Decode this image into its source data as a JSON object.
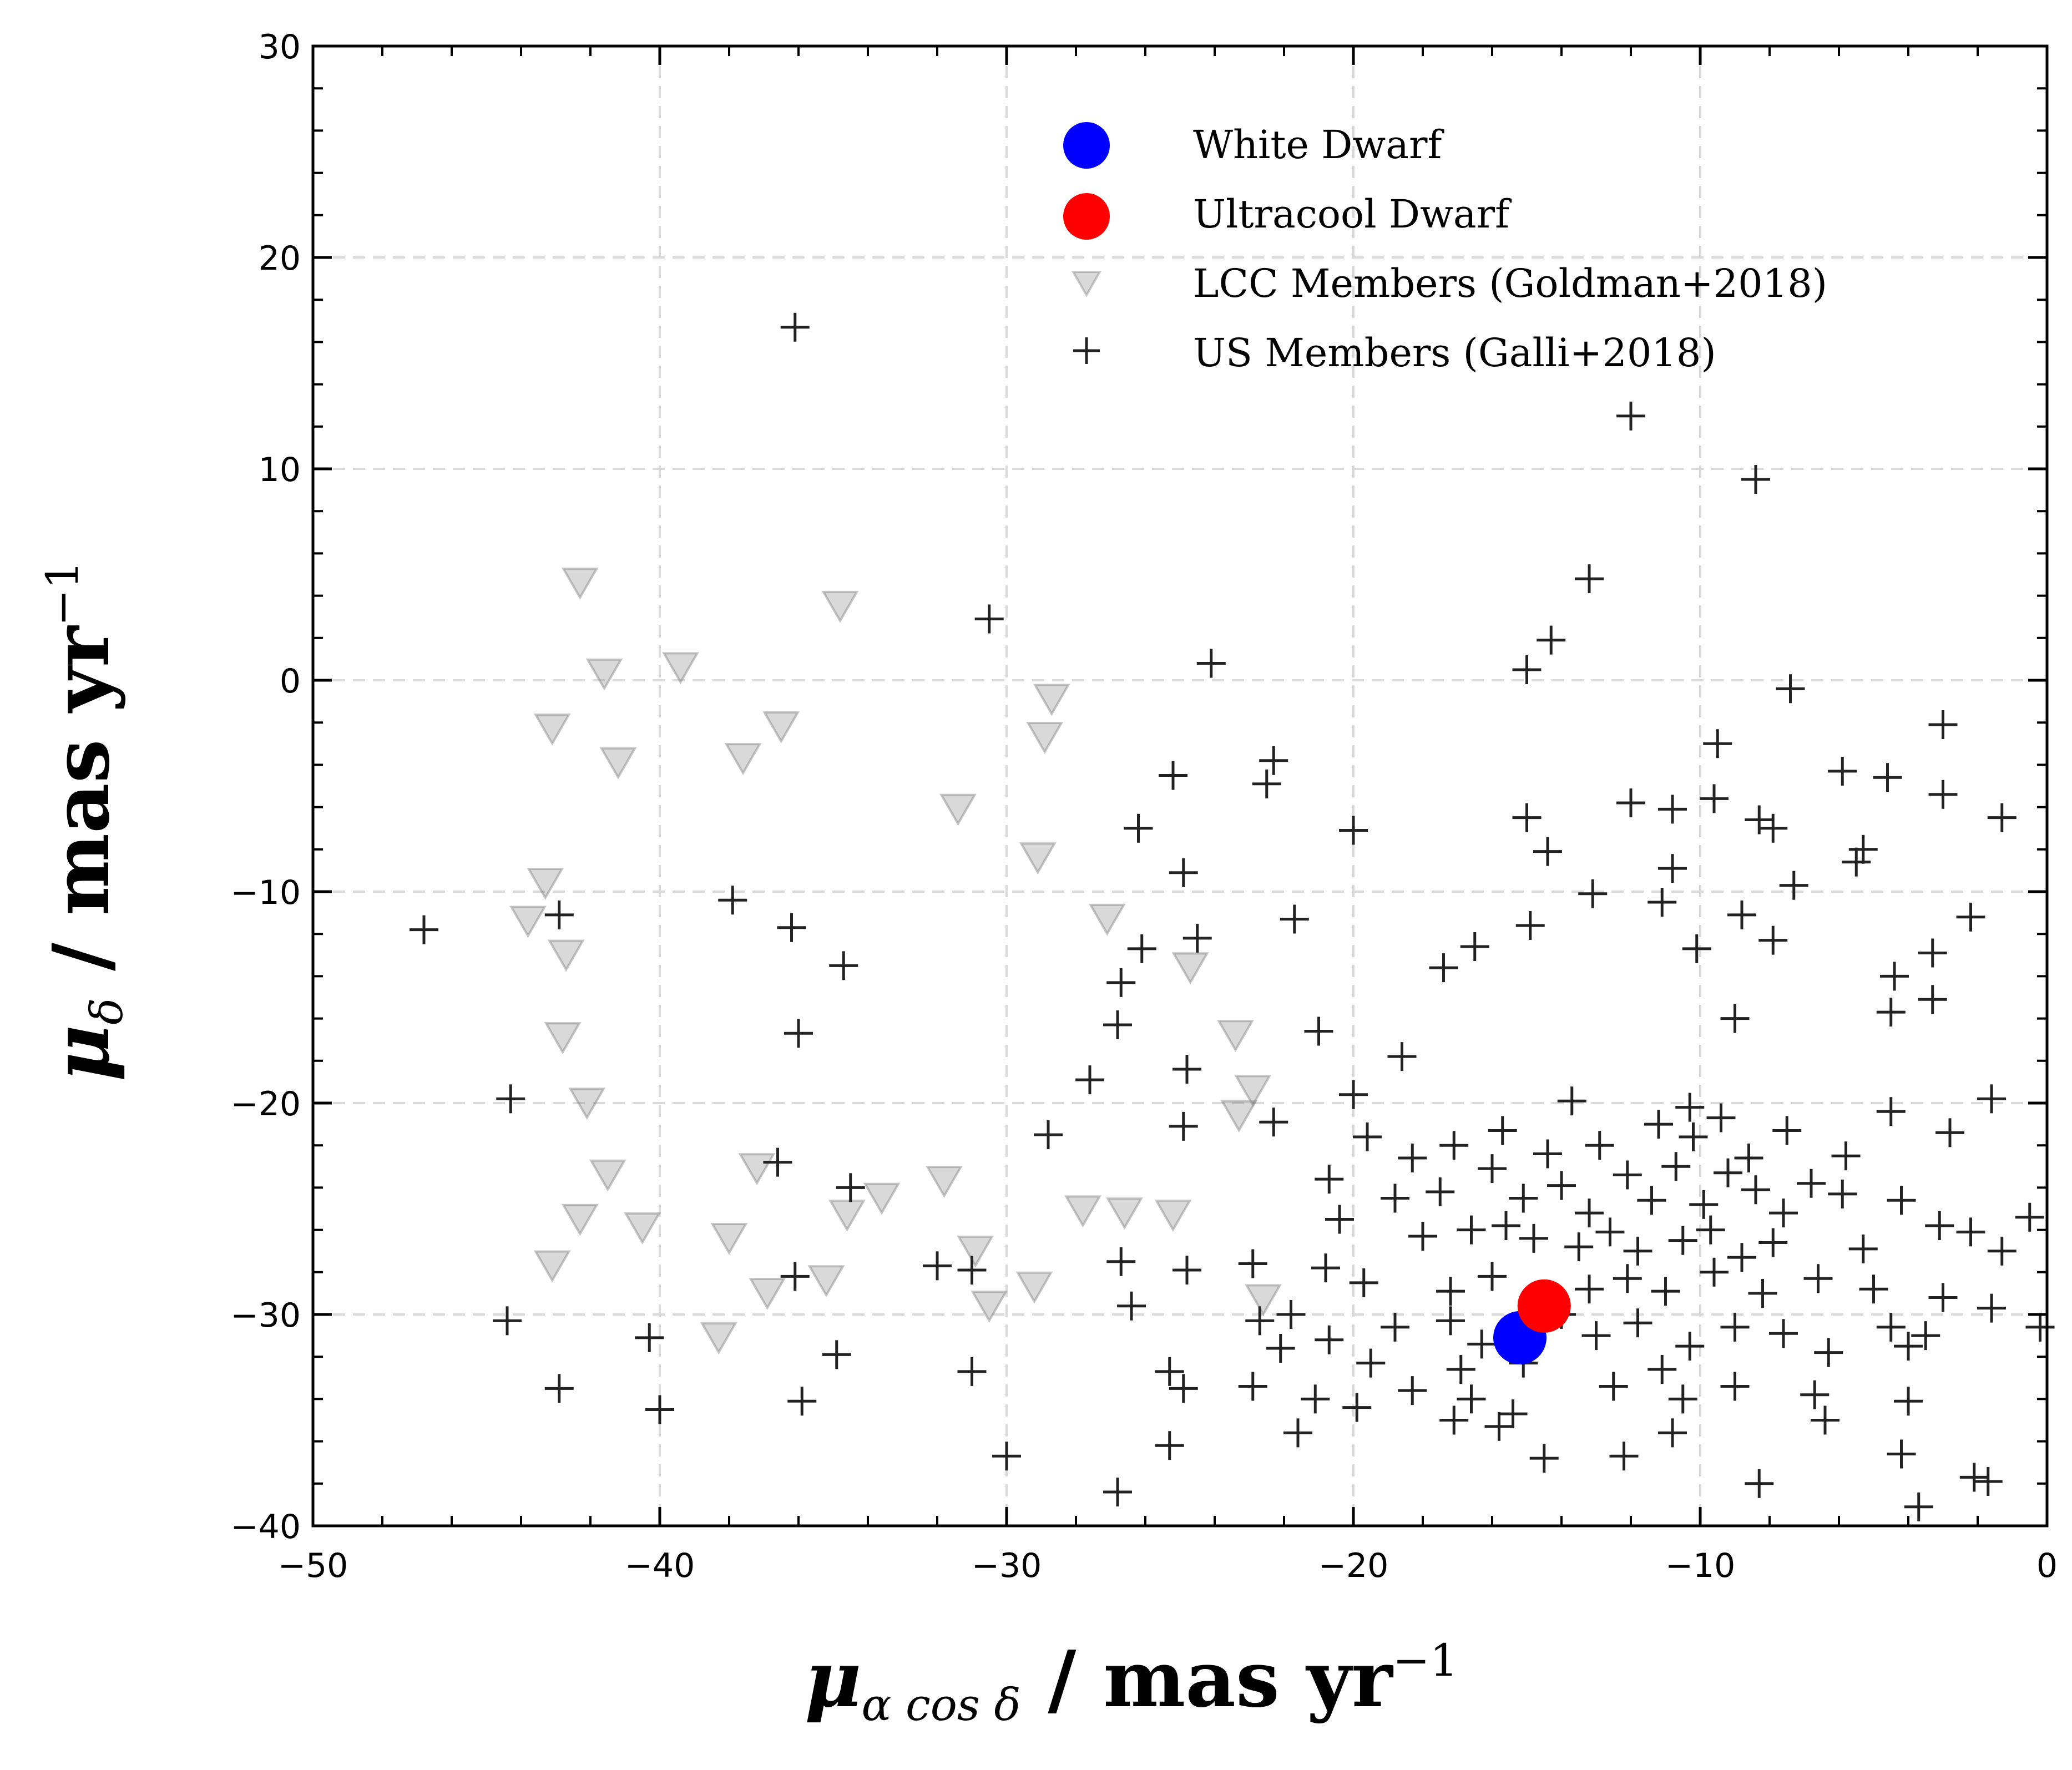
{
  "chart_data": {
    "type": "scatter",
    "title": "",
    "xlabel": {
      "symbol": "μ",
      "subscript": "α cos δ",
      "text": " / mas yr",
      "superscript": "−1"
    },
    "ylabel": {
      "symbol": "μ",
      "subscript": "δ",
      "text": " / mas yr",
      "superscript": "−1"
    },
    "xlim": [
      -50,
      0
    ],
    "ylim": [
      -40,
      30
    ],
    "xticks": [
      -50,
      -40,
      -30,
      -20,
      -10,
      0
    ],
    "xtick_labels": [
      "−50",
      "−40",
      "−30",
      "−20",
      "−10",
      "0"
    ],
    "yticks": [
      -40,
      -30,
      -20,
      -10,
      0,
      10,
      20,
      30
    ],
    "ytick_labels": [
      "−40",
      "−30",
      "−20",
      "−10",
      "0",
      "10",
      "20",
      "30"
    ],
    "grid": true,
    "legend_position": "top-right",
    "legend": [
      {
        "label": "White Dwarf",
        "marker": "circle",
        "color": "#0000ff"
      },
      {
        "label": "Ultracool Dwarf",
        "marker": "circle",
        "color": "#ff0000"
      },
      {
        "label": "LCC Members (Goldman+2018)",
        "marker": "triangle-down",
        "color": "#808080"
      },
      {
        "label": "US Members (Galli+2018)",
        "marker": "plus",
        "color": "#222222"
      }
    ],
    "series": [
      {
        "name": "White Dwarf",
        "marker": "circle",
        "color": "#0000ff",
        "points": [
          [
            -15.2,
            -31.1
          ]
        ]
      },
      {
        "name": "Ultracool Dwarf",
        "marker": "circle",
        "color": "#ff0000",
        "points": [
          [
            -14.5,
            -29.6
          ]
        ]
      },
      {
        "name": "LCC Members (Goldman+2018)",
        "marker": "triangle-down",
        "color": "#808080",
        "points": [
          [
            -42.3,
            4.7
          ],
          [
            -34.8,
            3.6
          ],
          [
            -41.6,
            0.4
          ],
          [
            -39.4,
            0.7
          ],
          [
            -28.7,
            -0.8
          ],
          [
            -43.1,
            -2.2
          ],
          [
            -36.5,
            -2.1
          ],
          [
            -28.9,
            -2.6
          ],
          [
            -41.2,
            -3.8
          ],
          [
            -37.6,
            -3.6
          ],
          [
            -31.4,
            -6.0
          ],
          [
            -29.1,
            -8.3
          ],
          [
            -43.3,
            -9.5
          ],
          [
            -43.8,
            -11.3
          ],
          [
            -42.7,
            -12.9
          ],
          [
            -27.1,
            -11.2
          ],
          [
            -24.7,
            -13.5
          ],
          [
            -23.4,
            -16.7
          ],
          [
            -42.8,
            -16.8
          ],
          [
            -42.1,
            -19.9
          ],
          [
            -22.9,
            -19.3
          ],
          [
            -23.3,
            -20.5
          ],
          [
            -41.5,
            -23.3
          ],
          [
            -42.3,
            -25.4
          ],
          [
            -40.5,
            -25.8
          ],
          [
            -43.1,
            -27.6
          ],
          [
            -38.0,
            -26.3
          ],
          [
            -36.9,
            -28.9
          ],
          [
            -35.2,
            -28.3
          ],
          [
            -38.3,
            -31.0
          ],
          [
            -33.6,
            -24.4
          ],
          [
            -30.5,
            -29.5
          ],
          [
            -29.2,
            -28.6
          ],
          [
            -30.9,
            -26.9
          ],
          [
            -26.6,
            -25.1
          ],
          [
            -25.2,
            -25.2
          ],
          [
            -22.6,
            -29.2
          ],
          [
            -27.8,
            -25.0
          ],
          [
            -31.8,
            -23.6
          ],
          [
            -34.6,
            -25.2
          ],
          [
            -37.2,
            -23.0
          ]
        ]
      },
      {
        "name": "US Members (Galli+2018)",
        "marker": "plus",
        "color": "#222222",
        "points": [
          [
            -36.1,
            16.7
          ],
          [
            -12.0,
            12.5
          ],
          [
            -8.4,
            9.5
          ],
          [
            -13.2,
            4.8
          ],
          [
            -30.5,
            2.9
          ],
          [
            -14.3,
            1.9
          ],
          [
            -15.0,
            0.5
          ],
          [
            -24.1,
            0.8
          ],
          [
            -7.4,
            -0.4
          ],
          [
            -3.0,
            -2.1
          ],
          [
            -9.5,
            -3.0
          ],
          [
            -22.3,
            -3.8
          ],
          [
            -25.2,
            -4.5
          ],
          [
            -22.5,
            -4.9
          ],
          [
            -5.9,
            -4.3
          ],
          [
            -4.6,
            -4.6
          ],
          [
            -3.0,
            -5.4
          ],
          [
            -12.0,
            -5.8
          ],
          [
            -10.8,
            -6.1
          ],
          [
            -9.6,
            -5.6
          ],
          [
            -15.0,
            -6.5
          ],
          [
            -8.3,
            -6.6
          ],
          [
            -1.3,
            -6.5
          ],
          [
            -26.2,
            -7.0
          ],
          [
            -20.0,
            -7.1
          ],
          [
            -14.4,
            -8.1
          ],
          [
            -7.9,
            -7.0
          ],
          [
            -5.3,
            -8.0
          ],
          [
            -5.5,
            -8.6
          ],
          [
            -10.8,
            -8.9
          ],
          [
            -24.9,
            -9.1
          ],
          [
            -7.3,
            -9.7
          ],
          [
            -13.1,
            -10.1
          ],
          [
            -11.1,
            -10.5
          ],
          [
            -46.8,
            -11.8
          ],
          [
            -42.9,
            -11.1
          ],
          [
            -37.9,
            -10.4
          ],
          [
            -36.2,
            -11.7
          ],
          [
            -21.7,
            -11.3
          ],
          [
            -14.9,
            -11.6
          ],
          [
            -8.8,
            -11.1
          ],
          [
            -2.2,
            -11.2
          ],
          [
            -34.7,
            -13.5
          ],
          [
            -26.1,
            -12.7
          ],
          [
            -24.5,
            -12.2
          ],
          [
            -16.5,
            -12.6
          ],
          [
            -10.1,
            -12.7
          ],
          [
            -7.9,
            -12.3
          ],
          [
            -3.3,
            -12.9
          ],
          [
            -26.7,
            -14.3
          ],
          [
            -17.4,
            -13.6
          ],
          [
            -4.4,
            -14.0
          ],
          [
            -3.3,
            -15.1
          ],
          [
            -4.5,
            -15.7
          ],
          [
            -36.0,
            -16.7
          ],
          [
            -26.8,
            -16.3
          ],
          [
            -21.0,
            -16.6
          ],
          [
            -18.6,
            -17.8
          ],
          [
            -9.0,
            -16.0
          ],
          [
            -27.6,
            -18.9
          ],
          [
            -24.8,
            -18.4
          ],
          [
            -44.3,
            -19.8
          ],
          [
            -20.0,
            -19.6
          ],
          [
            -13.7,
            -19.9
          ],
          [
            -10.3,
            -20.2
          ],
          [
            -28.8,
            -21.5
          ],
          [
            -24.9,
            -21.1
          ],
          [
            -22.3,
            -20.9
          ],
          [
            -19.6,
            -21.6
          ],
          [
            -18.3,
            -22.6
          ],
          [
            -17.1,
            -22.0
          ],
          [
            -15.7,
            -21.3
          ],
          [
            -14.4,
            -22.4
          ],
          [
            -12.9,
            -22.0
          ],
          [
            -11.2,
            -21.0
          ],
          [
            -10.2,
            -21.6
          ],
          [
            -9.4,
            -20.7
          ],
          [
            -8.6,
            -22.6
          ],
          [
            -7.5,
            -21.3
          ],
          [
            -5.8,
            -22.5
          ],
          [
            -4.5,
            -20.4
          ],
          [
            -2.8,
            -21.4
          ],
          [
            -1.6,
            -19.8
          ],
          [
            -36.6,
            -22.8
          ],
          [
            -34.5,
            -24.0
          ],
          [
            -20.7,
            -23.6
          ],
          [
            -18.8,
            -24.5
          ],
          [
            -17.5,
            -24.2
          ],
          [
            -16.0,
            -23.1
          ],
          [
            -15.1,
            -24.5
          ],
          [
            -14.0,
            -23.9
          ],
          [
            -13.2,
            -25.2
          ],
          [
            -12.1,
            -23.4
          ],
          [
            -11.4,
            -24.6
          ],
          [
            -10.7,
            -23.0
          ],
          [
            -9.9,
            -24.8
          ],
          [
            -9.2,
            -23.3
          ],
          [
            -8.4,
            -24.1
          ],
          [
            -7.6,
            -25.2
          ],
          [
            -6.8,
            -23.8
          ],
          [
            -5.9,
            -24.3
          ],
          [
            -4.2,
            -24.6
          ],
          [
            -3.1,
            -25.8
          ],
          [
            -0.5,
            -25.4
          ],
          [
            -20.4,
            -25.5
          ],
          [
            -18.0,
            -26.3
          ],
          [
            -16.6,
            -26.0
          ],
          [
            -15.6,
            -25.8
          ],
          [
            -14.8,
            -26.4
          ],
          [
            -13.5,
            -26.8
          ],
          [
            -12.6,
            -26.1
          ],
          [
            -11.8,
            -27.0
          ],
          [
            -10.5,
            -26.5
          ],
          [
            -9.7,
            -26.0
          ],
          [
            -8.8,
            -27.3
          ],
          [
            -7.9,
            -26.6
          ],
          [
            -5.3,
            -26.9
          ],
          [
            -2.2,
            -26.1
          ],
          [
            -1.3,
            -27.0
          ],
          [
            -36.1,
            -28.2
          ],
          [
            -32.0,
            -27.7
          ],
          [
            -31.0,
            -27.9
          ],
          [
            -26.7,
            -27.5
          ],
          [
            -24.8,
            -27.9
          ],
          [
            -22.9,
            -27.6
          ],
          [
            -20.8,
            -27.8
          ],
          [
            -19.7,
            -28.5
          ],
          [
            -17.2,
            -28.9
          ],
          [
            -16.0,
            -28.2
          ],
          [
            -13.2,
            -28.8
          ],
          [
            -12.1,
            -28.3
          ],
          [
            -11.0,
            -28.9
          ],
          [
            -9.6,
            -28.0
          ],
          [
            -8.2,
            -29.0
          ],
          [
            -6.6,
            -28.3
          ],
          [
            -5.0,
            -28.8
          ],
          [
            -3.0,
            -29.2
          ],
          [
            -1.6,
            -29.7
          ],
          [
            -44.4,
            -30.3
          ],
          [
            -26.4,
            -29.6
          ],
          [
            -22.7,
            -30.3
          ],
          [
            -21.8,
            -30.0
          ],
          [
            -20.7,
            -31.2
          ],
          [
            -18.8,
            -30.6
          ],
          [
            -17.2,
            -30.3
          ],
          [
            -16.3,
            -31.4
          ],
          [
            -14.0,
            -30.0
          ],
          [
            -13.0,
            -31.0
          ],
          [
            -11.8,
            -30.4
          ],
          [
            -10.3,
            -31.5
          ],
          [
            -9.0,
            -30.6
          ],
          [
            -7.6,
            -30.9
          ],
          [
            -6.3,
            -31.8
          ],
          [
            -4.5,
            -30.6
          ],
          [
            -3.5,
            -31.0
          ],
          [
            -0.2,
            -30.6
          ],
          [
            -40.3,
            -31.1
          ],
          [
            -34.9,
            -31.9
          ],
          [
            -22.1,
            -31.6
          ],
          [
            -19.5,
            -32.3
          ],
          [
            -16.9,
            -32.6
          ],
          [
            -15.1,
            -32.3
          ],
          [
            -11.1,
            -32.6
          ],
          [
            -4.0,
            -31.5
          ],
          [
            -42.9,
            -33.5
          ],
          [
            -31.0,
            -32.7
          ],
          [
            -25.3,
            -32.7
          ],
          [
            -24.9,
            -33.5
          ],
          [
            -22.9,
            -33.4
          ],
          [
            -21.1,
            -34.0
          ],
          [
            -19.9,
            -34.4
          ],
          [
            -18.3,
            -33.6
          ],
          [
            -16.6,
            -34.0
          ],
          [
            -15.4,
            -34.7
          ],
          [
            -12.5,
            -33.4
          ],
          [
            -10.5,
            -34.0
          ],
          [
            -9.0,
            -33.4
          ],
          [
            -6.7,
            -33.8
          ],
          [
            -4.0,
            -34.1
          ],
          [
            -40.0,
            -34.5
          ],
          [
            -35.9,
            -34.1
          ],
          [
            -21.6,
            -35.6
          ],
          [
            -17.1,
            -35.0
          ],
          [
            -15.8,
            -35.3
          ],
          [
            -10.8,
            -35.6
          ],
          [
            -6.4,
            -35.0
          ],
          [
            -30.0,
            -36.7
          ],
          [
            -25.3,
            -36.2
          ],
          [
            -14.5,
            -36.8
          ],
          [
            -12.2,
            -36.7
          ],
          [
            -4.2,
            -36.6
          ],
          [
            -8.3,
            -38.0
          ],
          [
            -2.1,
            -37.7
          ],
          [
            -1.7,
            -37.9
          ],
          [
            -26.8,
            -38.4
          ],
          [
            -3.7,
            -39.1
          ]
        ]
      }
    ]
  }
}
